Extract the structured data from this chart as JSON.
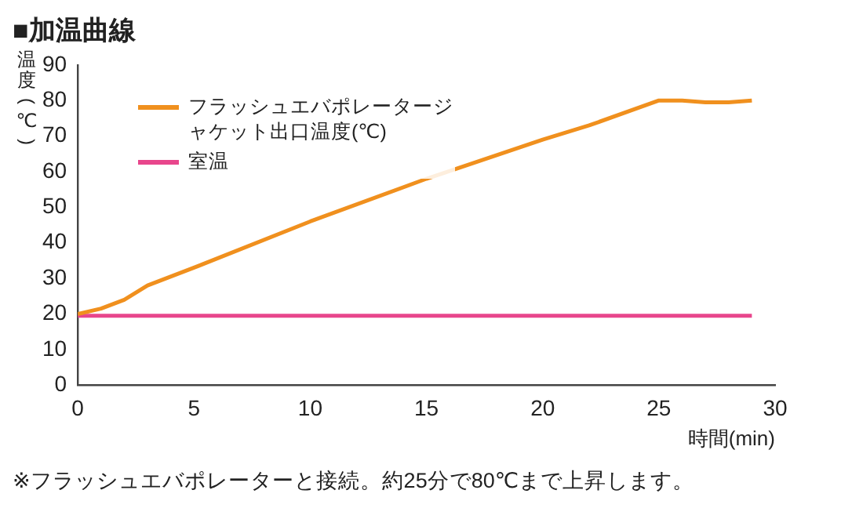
{
  "chart_data": {
    "type": "line",
    "title": "■加温曲線",
    "xlabel": "時間(min)",
    "ylabel": "温度(℃)",
    "x": [
      0,
      1,
      2,
      3,
      5,
      10,
      15,
      20,
      22,
      25,
      26,
      27,
      28,
      29
    ],
    "series": [
      {
        "name": "フラッシュエバポレータージャケット出口温度(℃)",
        "color": "#f0901e",
        "values": [
          20,
          21.5,
          24,
          28,
          33,
          46,
          58,
          69,
          73,
          80,
          80,
          79.5,
          79.5,
          80
        ]
      },
      {
        "name": "室温",
        "color": "#e8468c",
        "values": [
          19.5,
          19.5,
          19.5,
          19.5,
          19.5,
          19.5,
          19.5,
          19.5,
          19.5,
          19.5,
          19.5,
          19.5,
          19.5,
          19.5
        ]
      }
    ],
    "xlim": [
      0,
      30
    ],
    "xticks": [
      0,
      5,
      10,
      15,
      20,
      25,
      30
    ],
    "ylim": [
      0,
      90
    ],
    "yticks": [
      0,
      10,
      20,
      30,
      40,
      50,
      60,
      70,
      80,
      90
    ],
    "grid": false,
    "legend": "top left",
    "marker": "none",
    "line_style": "solid",
    "annotations": [
      "※フラッシュエバポレーターと接続。約25分で80℃まで上昇します。"
    ]
  }
}
